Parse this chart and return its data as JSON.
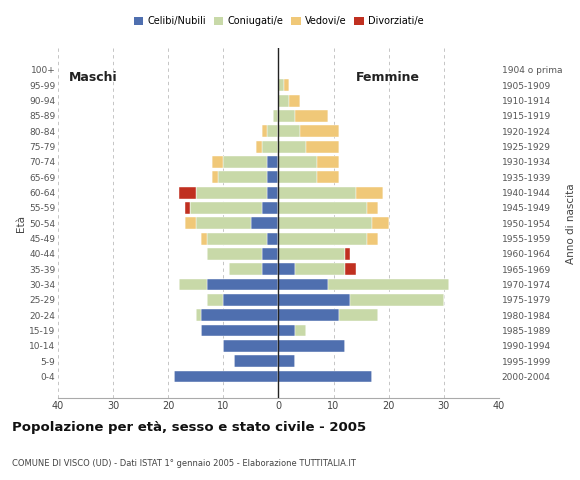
{
  "age_groups": [
    "0-4",
    "5-9",
    "10-14",
    "15-19",
    "20-24",
    "25-29",
    "30-34",
    "35-39",
    "40-44",
    "45-49",
    "50-54",
    "55-59",
    "60-64",
    "65-69",
    "70-74",
    "75-79",
    "80-84",
    "85-89",
    "90-94",
    "95-99",
    "100+"
  ],
  "birth_years": [
    "2000-2004",
    "1995-1999",
    "1990-1994",
    "1985-1989",
    "1980-1984",
    "1975-1979",
    "1970-1974",
    "1965-1969",
    "1960-1964",
    "1955-1959",
    "1950-1954",
    "1945-1949",
    "1940-1944",
    "1935-1939",
    "1930-1934",
    "1925-1929",
    "1920-1924",
    "1915-1919",
    "1910-1914",
    "1905-1909",
    "1904 o prima"
  ],
  "colors": {
    "celibi": "#4f6faf",
    "coniugati": "#c8d9a8",
    "vedovi": "#f0c878",
    "divorziati": "#c03020"
  },
  "maschi": {
    "celibi": [
      19,
      8,
      10,
      14,
      14,
      10,
      13,
      3,
      3,
      2,
      5,
      3,
      2,
      2,
      2,
      0,
      0,
      0,
      0,
      0,
      0
    ],
    "coniugati": [
      0,
      0,
      0,
      0,
      1,
      3,
      5,
      6,
      10,
      11,
      10,
      13,
      13,
      9,
      8,
      3,
      2,
      1,
      0,
      0,
      0
    ],
    "vedovi": [
      0,
      0,
      0,
      0,
      0,
      0,
      0,
      0,
      0,
      1,
      2,
      0,
      0,
      1,
      2,
      1,
      1,
      0,
      0,
      0,
      0
    ],
    "divorziati": [
      0,
      0,
      0,
      0,
      0,
      0,
      0,
      0,
      0,
      0,
      0,
      1,
      3,
      0,
      0,
      0,
      0,
      0,
      0,
      0,
      0
    ]
  },
  "femmine": {
    "celibi": [
      17,
      3,
      12,
      3,
      11,
      13,
      9,
      3,
      0,
      0,
      0,
      0,
      0,
      0,
      0,
      0,
      0,
      0,
      0,
      0,
      0
    ],
    "coniugati": [
      0,
      0,
      0,
      2,
      7,
      17,
      22,
      9,
      12,
      16,
      17,
      16,
      14,
      7,
      7,
      5,
      4,
      3,
      2,
      1,
      0
    ],
    "vedovi": [
      0,
      0,
      0,
      0,
      0,
      0,
      0,
      0,
      0,
      2,
      3,
      2,
      5,
      4,
      4,
      6,
      7,
      6,
      2,
      1,
      0
    ],
    "divorziati": [
      0,
      0,
      0,
      0,
      0,
      0,
      0,
      2,
      1,
      0,
      0,
      0,
      0,
      0,
      0,
      0,
      0,
      0,
      0,
      0,
      0
    ]
  },
  "title": "Popolazione per età, sesso e stato civile - 2005",
  "subtitle": "COMUNE DI VISCO (UD) - Dati ISTAT 1° gennaio 2005 - Elaborazione TUTTITALIA.IT",
  "ylabel_left": "Età",
  "ylabel_right": "Anno di nascita",
  "xlim": 40,
  "xticks": [
    -40,
    -30,
    -20,
    -10,
    0,
    10,
    20,
    30,
    40
  ],
  "legend_labels": [
    "Celibi/Nubili",
    "Coniugati/e",
    "Vedovi/e",
    "Divorziati/e"
  ],
  "maschi_label": "Maschi",
  "femmine_label": "Femmine",
  "background_color": "#ffffff",
  "grid_color": "#bbbbbb",
  "center_line_color": "#222222",
  "bar_height": 0.78,
  "bar_edge_color": "white",
  "bar_linewidth": 0.3
}
